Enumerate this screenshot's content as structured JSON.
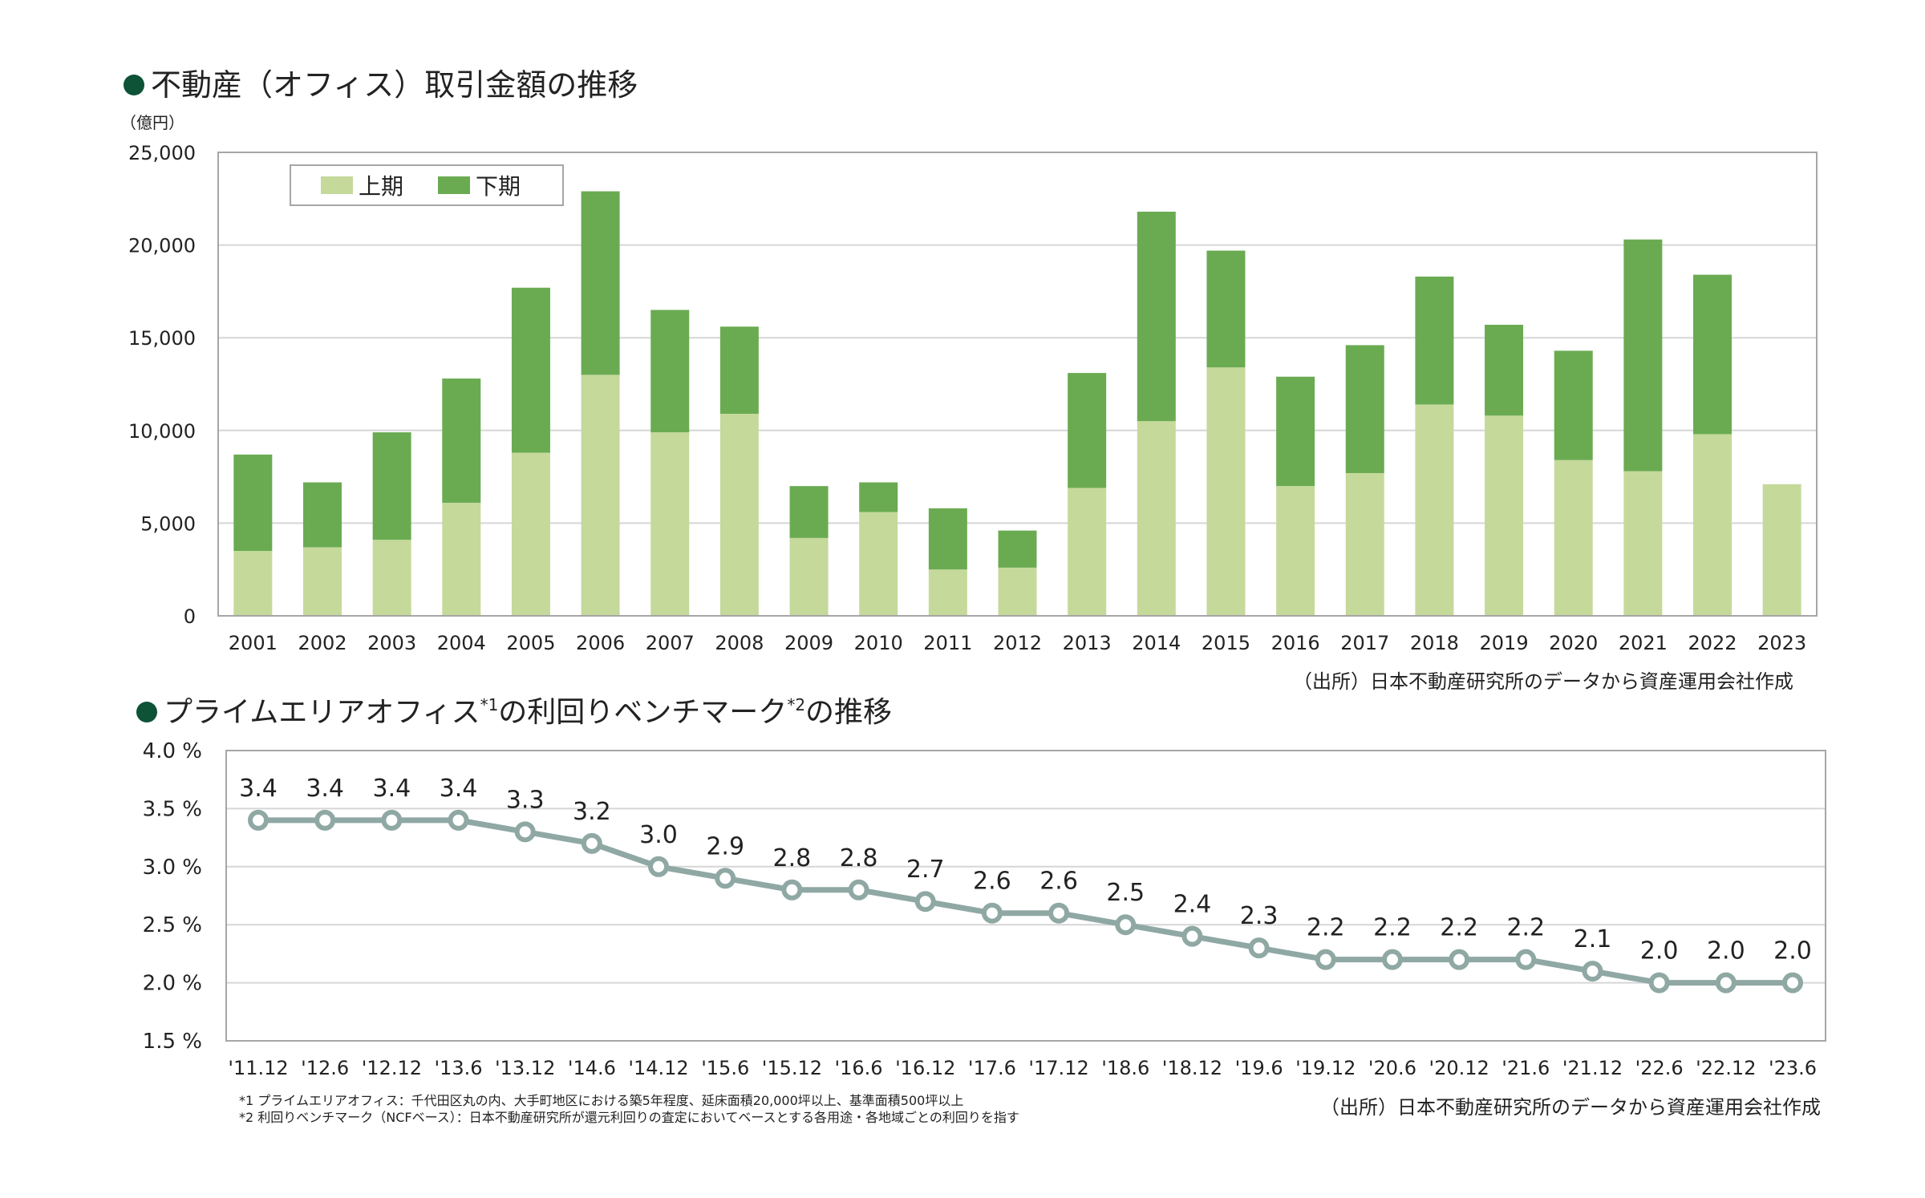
{
  "chart_data": [
    {
      "type": "bar",
      "stacked": true,
      "title": "不動産（オフィス）取引金額の推移",
      "unit_label": "（億円）",
      "categories": [
        "2001",
        "2002",
        "2003",
        "2004",
        "2005",
        "2006",
        "2007",
        "2008",
        "2009",
        "2010",
        "2011",
        "2012",
        "2013",
        "2014",
        "2015",
        "2016",
        "2017",
        "2018",
        "2019",
        "2020",
        "2021",
        "2022",
        "2023"
      ],
      "series": [
        {
          "name": "上期",
          "color": "#c5d99b",
          "values": [
            3500,
            3700,
            4100,
            6100,
            8800,
            13000,
            9900,
            10900,
            4200,
            5600,
            2500,
            2600,
            6900,
            10500,
            13400,
            7000,
            7700,
            11400,
            10800,
            8400,
            7800,
            9800,
            7100
          ]
        },
        {
          "name": "下期",
          "color": "#6aab52",
          "values": [
            5200,
            3500,
            5800,
            6700,
            8900,
            9900,
            6600,
            4700,
            2800,
            1600,
            3300,
            2000,
            6200,
            11300,
            6300,
            5900,
            6900,
            6900,
            4900,
            5900,
            12500,
            8600,
            0
          ]
        }
      ],
      "ylim": [
        0,
        25000
      ],
      "yticks": [
        "0",
        "5,000",
        "10,000",
        "15,000",
        "20,000",
        "25,000"
      ],
      "legend": "top-left",
      "grid": true,
      "source": "（出所）日本不動産研究所のデータから資産運用会社作成"
    },
    {
      "type": "line",
      "title_parts": [
        "プライムエリアオフィス",
        "*1",
        "の利回りベンチマーク",
        "*2",
        "の推移"
      ],
      "categories": [
        "'11.12",
        "'12.6",
        "'12.12",
        "'13.6",
        "'13.12",
        "'14.6",
        "'14.12",
        "'15.6",
        "'15.12",
        "'16.6",
        "'16.12",
        "'17.6",
        "'17.12",
        "'18.6",
        "'18.12",
        "'19.6",
        "'19.12",
        "'20.6",
        "'20.12",
        "'21.6",
        "'21.12",
        "'22.6",
        "'22.12",
        "'23.6"
      ],
      "values": [
        3.4,
        3.4,
        3.4,
        3.4,
        3.3,
        3.2,
        3.0,
        2.9,
        2.8,
        2.8,
        2.7,
        2.6,
        2.6,
        2.5,
        2.4,
        2.3,
        2.2,
        2.2,
        2.2,
        2.2,
        2.1,
        2.0,
        2.0,
        2.0
      ],
      "value_labels": [
        "3.4",
        "3.4",
        "3.4",
        "3.4",
        "3.3",
        "3.2",
        "3.0",
        "2.9",
        "2.8",
        "2.8",
        "2.7",
        "2.6",
        "2.6",
        "2.5",
        "2.4",
        "2.3",
        "2.2",
        "2.2",
        "2.2",
        "2.2",
        "2.1",
        "2.0",
        "2.0",
        "2.0"
      ],
      "ylim": [
        1.5,
        4.0
      ],
      "yticks": [
        "1.5 %",
        "2.0 %",
        "2.5 %",
        "3.0 %",
        "3.5 %",
        "4.0 %"
      ],
      "color": "#8fa8a4",
      "grid": true,
      "notes": [
        "*1 プライムエリアオフィス：千代田区丸の内、大手町地区における築5年程度、延床面積20,000坪以上、基準面積500坪以上",
        "*2 利回りベンチマーク（NCFベース）：日本不動産研究所が還元利回りの査定においてベースとする各用途・各地域ごとの利回りを指す"
      ],
      "source": "（出所）日本不動産研究所のデータから資産運用会社作成"
    }
  ],
  "colors": {
    "bullet": "#0e5238",
    "grid": "#d6d6d6",
    "frame": "#a6a6a6"
  }
}
